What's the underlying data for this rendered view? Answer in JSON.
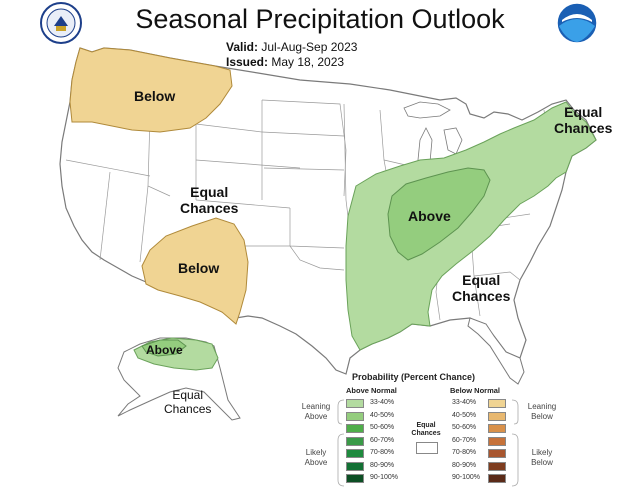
{
  "title": "Seasonal Precipitation Outlook",
  "valid_label": "Valid:",
  "valid_value": "Jul-Aug-Sep 2023",
  "issued_label": "Issued:",
  "issued_value": "May 18, 2023",
  "regions": {
    "northwest": "Below",
    "west_central_1": "Equal",
    "west_central_2": "Chances",
    "southwest": "Below",
    "midwest": "Above",
    "northeast_1": "Equal",
    "northeast_2": "Chances",
    "southeast_1": "Equal",
    "southeast_2": "Chances",
    "alaska_above": "Above",
    "alaska_ec_1": "Equal",
    "alaska_ec_2": "Chances"
  },
  "legend": {
    "title": "Probability (Percent Chance)",
    "above_header": "Above Normal",
    "below_header": "Below Normal",
    "leaning_above_1": "Leaning",
    "leaning_above_2": "Above",
    "likely_above_1": "Likely",
    "likely_above_2": "Above",
    "leaning_below_1": "Leaning",
    "leaning_below_2": "Below",
    "likely_below_1": "Likely",
    "likely_below_2": "Below",
    "equal_1": "Equal",
    "equal_2": "Chances",
    "bins": [
      "33-40%",
      "40-50%",
      "50-60%",
      "60-70%",
      "70-80%",
      "80-90%",
      "90-100%"
    ],
    "above_colors": [
      "#b3dba0",
      "#94cd7e",
      "#4fae4a",
      "#3a9a48",
      "#1e8a3e",
      "#127034",
      "#0c4e24"
    ],
    "below_colors": [
      "#f0d493",
      "#e8b870",
      "#d9914a",
      "#c6723a",
      "#a8562f",
      "#7e3d1f",
      "#5a2a18"
    ]
  },
  "colors": {
    "above_33_40": "#b3dba0",
    "above_40_50": "#94cd7e",
    "below_33_40": "#f0d493",
    "boundary": "#7a7a7a"
  },
  "logos": {
    "left": "department-of-commerce-seal",
    "right": "noaa-logo"
  }
}
